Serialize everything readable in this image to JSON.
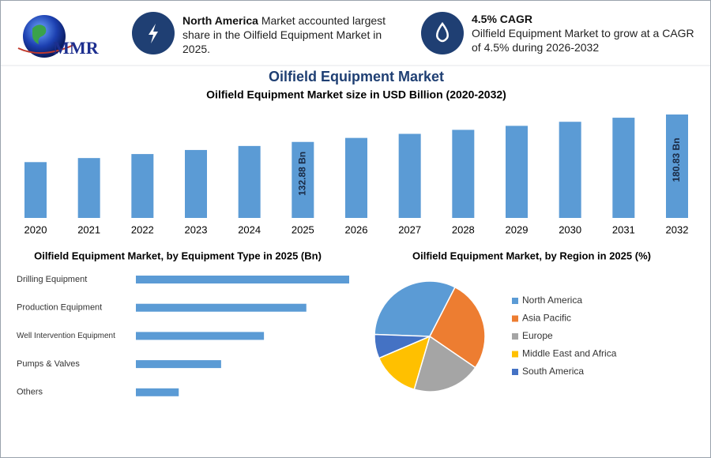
{
  "header": {
    "logo": "MMR",
    "box1": {
      "highlight": "North America",
      "text": "Market accounted largest share in the Oilfield Equipment Market in 2025."
    },
    "box2": {
      "highlight": "4.5% CAGR",
      "text": "Oilfield Equipment Market to grow at a CAGR of 4.5% during 2026-2032"
    }
  },
  "title": "Oilfield Equipment Market",
  "chart_data": [
    {
      "type": "bar",
      "title": "Oilfield Equipment Market size in USD Billion (2020-2032)",
      "categories": [
        "2020",
        "2021",
        "2022",
        "2023",
        "2024",
        "2025",
        "2026",
        "2027",
        "2028",
        "2029",
        "2030",
        "2031",
        "2032"
      ],
      "values": [
        97.6,
        104.7,
        111.7,
        118.8,
        125.8,
        132.88,
        139.9,
        147.0,
        154.0,
        161.0,
        168.1,
        175.2,
        180.83
      ],
      "value_labels": [
        null,
        null,
        null,
        null,
        null,
        "132.88 Bn",
        null,
        null,
        null,
        null,
        null,
        null,
        "180.83 Bn"
      ],
      "color": "#5b9bd5"
    },
    {
      "type": "hbar",
      "title": "Oilfield Equipment Market, by Equipment Type in 2025 (Bn)",
      "categories": [
        "Drilling Equipment",
        "Production Equipment",
        "Well Intervention Equipment",
        "Pumps & Valves",
        "Others"
      ],
      "values": [
        44.3,
        35.4,
        26.6,
        17.7,
        8.9
      ],
      "color": "#5b9bd5"
    },
    {
      "type": "pie",
      "title": "Oilfield Equipment Market, by Region in 2025 (%)",
      "categories": [
        "North America",
        "Asia Pacific",
        "Europe",
        "Middle East and Africa",
        "South America"
      ],
      "values": [
        32,
        27,
        20,
        14,
        7
      ],
      "colors": [
        "#5b9bd5",
        "#ed7d31",
        "#a5a5a5",
        "#ffc000",
        "#4472c4"
      ]
    }
  ]
}
